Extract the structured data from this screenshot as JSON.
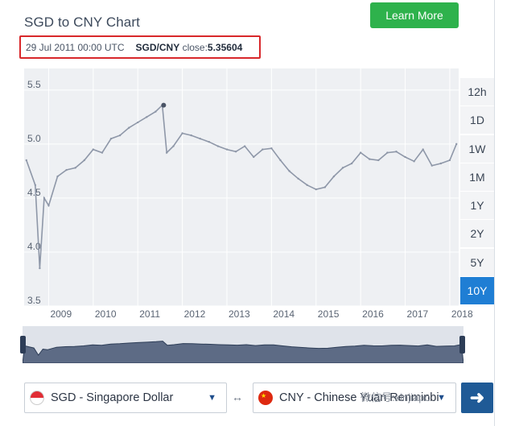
{
  "header": {
    "title": "SGD to CNY Chart",
    "learn_more": "Learn More"
  },
  "info": {
    "datetime": "29 Jul 2011 00:00 UTC",
    "pair": "SGD/CNY",
    "close_label": "close:",
    "close_value": "5.35604"
  },
  "ranges": [
    "12h",
    "1D",
    "1W",
    "1M",
    "1Y",
    "2Y",
    "5Y",
    "10Y"
  ],
  "active_range": "10Y",
  "chart_data": {
    "type": "line",
    "title": "",
    "xlabel": "",
    "ylabel": "",
    "x_ticks": [
      "2009",
      "2010",
      "2011",
      "2012",
      "2013",
      "2014",
      "2015",
      "2016",
      "2017",
      "2018"
    ],
    "y_ticks": [
      3.5,
      4.0,
      4.5,
      5.0,
      5.5
    ],
    "ylim": [
      3.5,
      5.7
    ],
    "series": [
      {
        "x": [
          2008.5,
          2008.7,
          2008.8,
          2008.9,
          2009.0,
          2009.2,
          2009.4,
          2009.6,
          2009.8,
          2010.0,
          2010.2,
          2010.4,
          2010.6,
          2010.8,
          2011.0,
          2011.2,
          2011.4,
          2011.55,
          2011.65,
          2011.8,
          2012.0,
          2012.2,
          2012.4,
          2012.6,
          2012.8,
          2013.0,
          2013.2,
          2013.4,
          2013.6,
          2013.8,
          2014.0,
          2014.2,
          2014.4,
          2014.6,
          2014.8,
          2015.0,
          2015.2,
          2015.4,
          2015.6,
          2015.8,
          2016.0,
          2016.2,
          2016.4,
          2016.6,
          2016.8,
          2017.0,
          2017.2,
          2017.4,
          2017.6,
          2017.8,
          2018.0,
          2018.15
        ],
        "values": [
          4.85,
          4.62,
          3.85,
          4.5,
          4.43,
          4.7,
          4.76,
          4.78,
          4.85,
          4.95,
          4.92,
          5.05,
          5.08,
          5.15,
          5.2,
          5.25,
          5.3,
          5.36,
          4.92,
          4.98,
          5.1,
          5.08,
          5.05,
          5.02,
          4.98,
          4.95,
          4.93,
          4.98,
          4.88,
          4.95,
          4.96,
          4.85,
          4.75,
          4.68,
          4.62,
          4.58,
          4.6,
          4.7,
          4.78,
          4.82,
          4.92,
          4.86,
          4.85,
          4.92,
          4.93,
          4.88,
          4.84,
          4.95,
          4.8,
          4.82,
          4.85,
          5.0
        ]
      }
    ],
    "highlight_point": {
      "x": 2011.58,
      "y": 5.36
    }
  },
  "from_currency": {
    "label": "SGD - Singapore Dollar",
    "flag": "singapore-flag"
  },
  "to_currency": {
    "label": "CNY - Chinese Yuan Renminbi",
    "flag": "china-flag"
  },
  "swap_icon": "↔",
  "submit_icon": "➜",
  "watermark": "微信号:xinjiapo"
}
